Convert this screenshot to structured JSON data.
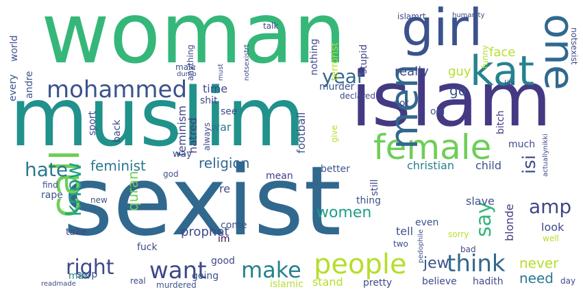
{
  "words": [
    {
      "text": "sexist",
      "color": "#31688e",
      "vertical": false
    },
    {
      "text": "woman",
      "color": "#35b779",
      "vertical": false
    },
    {
      "text": "muslim",
      "color": "#21918c",
      "vertical": false
    },
    {
      "text": "islam",
      "color": "#443983",
      "vertical": false
    },
    {
      "text": "girl",
      "color": "#3b528b",
      "vertical": false
    },
    {
      "text": "kat",
      "color": "#26828e",
      "vertical": false
    },
    {
      "text": "one",
      "color": "#31688e",
      "vertical": true
    },
    {
      "text": "female",
      "color": "#6ece58",
      "vertical": false
    },
    {
      "text": "call",
      "color": "#6ece58",
      "vertical": true
    },
    {
      "text": "mohammed",
      "color": "#3b528b",
      "vertical": false
    },
    {
      "text": "men",
      "color": "#31688e",
      "vertical": true
    },
    {
      "text": "year",
      "color": "#31688e",
      "vertical": false
    },
    {
      "text": "people",
      "color": "#b5de2b",
      "vertical": false
    },
    {
      "text": "think",
      "color": "#31688e",
      "vertical": false
    },
    {
      "text": "want",
      "color": "#3e4989",
      "vertical": false
    },
    {
      "text": "make",
      "color": "#26828e",
      "vertical": false
    },
    {
      "text": "right",
      "color": "#3e4989",
      "vertical": false
    },
    {
      "text": "know",
      "color": "#1f9e89",
      "vertical": true
    },
    {
      "text": "hate",
      "color": "#2a788e",
      "vertical": false
    },
    {
      "text": "amp",
      "color": "#404688",
      "vertical": false
    },
    {
      "text": "say",
      "color": "#35b779",
      "vertical": true
    },
    {
      "text": "isi",
      "color": "#3e4989",
      "vertical": true
    },
    {
      "text": "women",
      "color": "#1f9e89",
      "vertical": false
    },
    {
      "text": "feminist",
      "color": "#2a788e",
      "vertical": false
    },
    {
      "text": "religion",
      "color": "#31688e",
      "vertical": false
    },
    {
      "text": "jew",
      "color": "#3b528b",
      "vertical": false
    },
    {
      "text": "never",
      "color": "#b5de2b",
      "vertical": false
    },
    {
      "text": "need",
      "color": "#2a788e",
      "vertical": false
    },
    {
      "text": "quran",
      "color": "#6ece58",
      "vertical": true
    },
    {
      "text": "prophet",
      "color": "#3e4989",
      "vertical": false
    },
    {
      "text": "go",
      "color": "#3b528b",
      "vertical": false
    },
    {
      "text": "face",
      "color": "#b5de2b",
      "vertical": false
    },
    {
      "text": "guy",
      "color": "#b5de2b",
      "vertical": false
    },
    {
      "text": "really",
      "color": "#3e4989",
      "vertical": false
    },
    {
      "text": "time",
      "color": "#3e4989",
      "vertical": false
    },
    {
      "text": "war",
      "color": "#2a788e",
      "vertical": false
    },
    {
      "text": "feminism",
      "color": "#404688",
      "vertical": true
    },
    {
      "text": "hatred",
      "color": "#443983",
      "vertical": true
    },
    {
      "text": "football",
      "color": "#3b528b",
      "vertical": true
    },
    {
      "text": "child",
      "color": "#3b528b",
      "vertical": false
    },
    {
      "text": "christian",
      "color": "#26828e",
      "vertical": false
    },
    {
      "text": "blonde",
      "color": "#443983",
      "vertical": true
    },
    {
      "text": "slave",
      "color": "#3b528b",
      "vertical": false
    },
    {
      "text": "look",
      "color": "#3e4989",
      "vertical": false
    },
    {
      "text": "tell",
      "color": "#3b528b",
      "vertical": false
    },
    {
      "text": "even",
      "color": "#3b528b",
      "vertical": false
    },
    {
      "text": "thing",
      "color": "#3b528b",
      "vertical": false
    },
    {
      "text": "mean",
      "color": "#443983",
      "vertical": false
    },
    {
      "text": "better",
      "color": "#3b528b",
      "vertical": false
    },
    {
      "text": "still",
      "color": "#3e4989",
      "vertical": true
    },
    {
      "text": "good",
      "color": "#3e4989",
      "vertical": false
    },
    {
      "text": "going",
      "color": "#3b528b",
      "vertical": false
    },
    {
      "text": "stop",
      "color": "#3e4989",
      "vertical": false
    },
    {
      "text": "man",
      "color": "#26828e",
      "vertical": false
    },
    {
      "text": "fuck",
      "color": "#3e4989",
      "vertical": false
    },
    {
      "text": "take",
      "color": "#3e4989",
      "vertical": false
    },
    {
      "text": "rape",
      "color": "#3b528b",
      "vertical": false
    },
    {
      "text": "come",
      "color": "#3b528b",
      "vertical": false
    },
    {
      "text": "re",
      "color": "#3e4989",
      "vertical": false
    },
    {
      "text": "im",
      "color": "#440154",
      "vertical": false
    },
    {
      "text": "murder",
      "color": "#3b528b",
      "vertical": false
    },
    {
      "text": "bitch",
      "color": "#443983",
      "vertical": true
    },
    {
      "text": "got",
      "color": "#3e4989",
      "vertical": false
    },
    {
      "text": "old",
      "color": "#3b528b",
      "vertical": false
    },
    {
      "text": "much",
      "color": "#3e4989",
      "vertical": false
    },
    {
      "text": "give",
      "color": "#b5de2b",
      "vertical": true
    },
    {
      "text": "shit",
      "color": "#3e4989",
      "vertical": false
    },
    {
      "text": "see",
      "color": "#3e4989",
      "vertical": false
    },
    {
      "text": "sport",
      "color": "#3e4989",
      "vertical": true
    },
    {
      "text": "back",
      "color": "#3e4989",
      "vertical": true
    },
    {
      "text": "way",
      "color": "#3b528b",
      "vertical": false
    },
    {
      "text": "every",
      "color": "#3b528b",
      "vertical": true
    },
    {
      "text": "andre",
      "color": "#3b528b",
      "vertical": true
    },
    {
      "text": "world",
      "color": "#3b528b",
      "vertical": true
    },
    {
      "text": "male",
      "color": "#3e4989",
      "vertical": false
    },
    {
      "text": "anything",
      "color": "#3e4989",
      "vertical": true
    },
    {
      "text": "dumb",
      "color": "#3e4989",
      "vertical": false
    },
    {
      "text": "must",
      "color": "#3e4989",
      "vertical": true
    },
    {
      "text": "terrorist",
      "color": "#b5de2b",
      "vertical": true
    },
    {
      "text": "stupid",
      "color": "#3e4989",
      "vertical": true
    },
    {
      "text": "nothing",
      "color": "#3e4989",
      "vertical": true
    },
    {
      "text": "talk",
      "color": "#3e4989",
      "vertical": false
    },
    {
      "text": "islamrt",
      "color": "#3e4989",
      "vertical": false
    },
    {
      "text": "humanity",
      "color": "#3e4989",
      "vertical": false
    },
    {
      "text": "notsexist",
      "color": "#3e4989",
      "vertical": true
    },
    {
      "text": "funny",
      "color": "#b5de2b",
      "vertical": true
    },
    {
      "text": "lie",
      "color": "#3e4989",
      "vertical": false
    },
    {
      "text": "declared",
      "color": "#3e4989",
      "vertical": false
    },
    {
      "text": "notsexistrt",
      "color": "#3e4989",
      "vertical": true
    },
    {
      "text": "always",
      "color": "#3e4989",
      "vertical": true
    },
    {
      "text": "god",
      "color": "#3b528b",
      "vertical": false
    },
    {
      "text": "find",
      "color": "#3e4989",
      "vertical": false
    },
    {
      "text": "new",
      "color": "#3b528b",
      "vertical": false
    },
    {
      "text": "murdered",
      "color": "#3b528b",
      "vertical": false
    },
    {
      "text": "readmade",
      "color": "#3e4989",
      "vertical": false
    },
    {
      "text": "real",
      "color": "#3e4989",
      "vertical": false
    },
    {
      "text": "stand",
      "color": "#b5de2b",
      "vertical": false
    },
    {
      "text": "pretty",
      "color": "#3e4989",
      "vertical": false
    },
    {
      "text": "believe",
      "color": "#3e4989",
      "vertical": false
    },
    {
      "text": "hadith",
      "color": "#3e4989",
      "vertical": false
    },
    {
      "text": "day",
      "color": "#3e4989",
      "vertical": false
    },
    {
      "text": "bad",
      "color": "#3e4989",
      "vertical": false
    },
    {
      "text": "islamic",
      "color": "#b5de2b",
      "vertical": false
    },
    {
      "text": "two",
      "color": "#3e4989",
      "vertical": false
    },
    {
      "text": "pedophile",
      "color": "#3b528b",
      "vertical": true
    },
    {
      "text": "sorry",
      "color": "#b5de2b",
      "vertical": false
    },
    {
      "text": "well",
      "color": "#b5de2b",
      "vertical": false
    },
    {
      "text": "actuallynikki",
      "color": "#3e4989",
      "vertical": true
    }
  ]
}
